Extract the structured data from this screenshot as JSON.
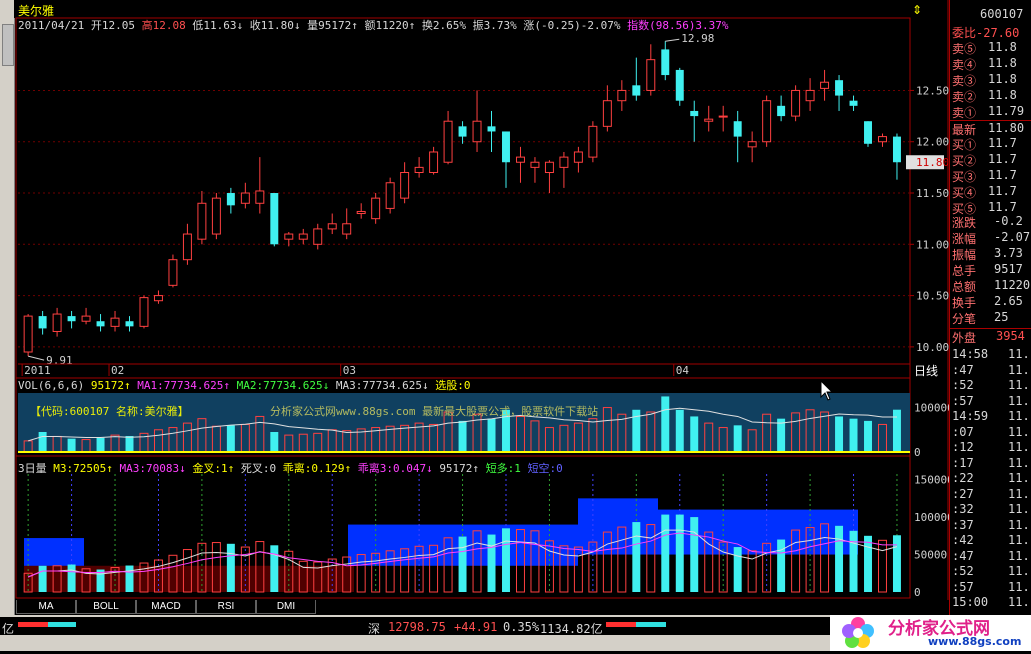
{
  "window": {
    "title": "美尔雅"
  },
  "infobar": {
    "date": "2011/04/21",
    "open": "开12.05",
    "high": "高12.08",
    "low": "低11.63↓",
    "close": "收11.80↓",
    "volume": "量95172↑",
    "amount": "额11220↑",
    "turnover": "换2.65%",
    "amplitude": "振3.73%",
    "change": "涨(-0.25)-2.07%",
    "index": "指数(98.56)3.37%"
  },
  "price_axis": [
    "12.50",
    "12.00",
    "11.50",
    "11.00",
    "10.50",
    "10.00"
  ],
  "price_tag": "11.80",
  "high_label": "12.98",
  "low_label": "9.91",
  "time_labels": [
    "2011",
    "02",
    "03",
    "04"
  ],
  "period": "日线",
  "vol_panel": {
    "legend": [
      "VOL(6,6,6)",
      "95172↑",
      "MA1:77734.625↑",
      "MA2:77734.625↓",
      "MA3:77734.625↓",
      "选股:0"
    ],
    "overlay_left": "【代码:600107 名称:美尔雅】",
    "overlay_mid": "分析家公式网www.88gs.com 最新最大股票公式，股票软件下载站",
    "axis": [
      "100000",
      "0"
    ]
  },
  "ind_panel": {
    "legend": [
      "3日量",
      "M3:72505↑",
      "MA3:70083↓",
      "金叉:1↑",
      "死叉:0",
      "乖离:0.129↑",
      "乖离3:0.047↓",
      "95172↑",
      "短多:1",
      "短空:0"
    ],
    "axis": [
      "150000",
      "100000",
      "50000",
      "0"
    ]
  },
  "tabs": [
    "MA",
    "BOLL",
    "MACD",
    "RSI",
    "DMI"
  ],
  "right_panel": {
    "code": "600107",
    "weibi": "委比-27.60",
    "sell": [
      {
        "label": "卖⑤",
        "price": "11.8"
      },
      {
        "label": "卖④",
        "price": "11.8"
      },
      {
        "label": "卖③",
        "price": "11.8"
      },
      {
        "label": "卖②",
        "price": "11.8"
      },
      {
        "label": "卖①",
        "price": "11.79"
      }
    ],
    "latest": {
      "label": "最新",
      "price": "11.80"
    },
    "buy": [
      {
        "label": "买①",
        "price": "11.7"
      },
      {
        "label": "买②",
        "price": "11.7"
      },
      {
        "label": "买③",
        "price": "11.7"
      },
      {
        "label": "买④",
        "price": "11.7"
      },
      {
        "label": "买⑤",
        "price": "11.7"
      }
    ],
    "stats": [
      {
        "label": "涨跌",
        "value": "-0.2"
      },
      {
        "label": "涨幅",
        "value": "-2.07"
      },
      {
        "label": "振幅",
        "value": "3.73"
      },
      {
        "label": "总手",
        "value": "9517"
      },
      {
        "label": "总额",
        "value": "11220"
      },
      {
        "label": "换手",
        "value": "2.65"
      },
      {
        "label": "分笔",
        "value": "25"
      }
    ],
    "waipan": {
      "label": "外盘",
      "value": "3954"
    },
    "ticks": [
      {
        "t": "14:58",
        "p": "11."
      },
      {
        "t": ":47",
        "p": "11."
      },
      {
        "t": ":52",
        "p": "11."
      },
      {
        "t": ":57",
        "p": "11."
      },
      {
        "t": "14:59",
        "p": "11."
      },
      {
        "t": ":07",
        "p": "11."
      },
      {
        "t": ":12",
        "p": "11."
      },
      {
        "t": ":17",
        "p": "11."
      },
      {
        "t": ":22",
        "p": "11."
      },
      {
        "t": ":27",
        "p": "11."
      },
      {
        "t": ":32",
        "p": "11."
      },
      {
        "t": ":37",
        "p": "11."
      },
      {
        "t": ":42",
        "p": "11."
      },
      {
        "t": ":47",
        "p": "11."
      },
      {
        "t": ":52",
        "p": "11."
      },
      {
        "t": ":57",
        "p": "11."
      },
      {
        "t": "15:00",
        "p": "11."
      }
    ]
  },
  "status": {
    "left_unit": "亿",
    "market": "深",
    "index": "12798.75",
    "change": "+44.91",
    "pct": "0.35%",
    "amount": "1134.82亿",
    "logo_text": "分析家公式网",
    "logo_url": "www.88gs.com"
  },
  "chart_data": {
    "type": "candlestick",
    "candles": [
      [
        9.95,
        10.3,
        9.91,
        10.32
      ],
      [
        10.3,
        10.18,
        10.12,
        10.35
      ],
      [
        10.15,
        10.32,
        10.1,
        10.38
      ],
      [
        10.3,
        10.25,
        10.18,
        10.35
      ],
      [
        10.25,
        10.3,
        10.22,
        10.38
      ],
      [
        10.25,
        10.2,
        10.15,
        10.32
      ],
      [
        10.2,
        10.28,
        10.15,
        10.35
      ],
      [
        10.25,
        10.2,
        10.15,
        10.3
      ],
      [
        10.2,
        10.48,
        10.18,
        10.5
      ],
      [
        10.45,
        10.5,
        10.42,
        10.55
      ],
      [
        10.6,
        10.85,
        10.58,
        10.9
      ],
      [
        10.85,
        11.1,
        10.8,
        11.2
      ],
      [
        11.05,
        11.4,
        11.0,
        11.52
      ],
      [
        11.1,
        11.45,
        11.05,
        11.5
      ],
      [
        11.5,
        11.38,
        11.3,
        11.55
      ],
      [
        11.4,
        11.5,
        11.35,
        11.6
      ],
      [
        11.4,
        11.52,
        11.3,
        11.85
      ],
      [
        11.5,
        11.0,
        10.98,
        11.5
      ],
      [
        11.05,
        11.1,
        10.98,
        11.12
      ],
      [
        11.05,
        11.1,
        11.0,
        11.15
      ],
      [
        11.0,
        11.15,
        10.95,
        11.2
      ],
      [
        11.15,
        11.2,
        11.1,
        11.3
      ],
      [
        11.1,
        11.2,
        11.05,
        11.35
      ],
      [
        11.3,
        11.32,
        11.25,
        11.4
      ],
      [
        11.25,
        11.45,
        11.2,
        11.5
      ],
      [
        11.35,
        11.6,
        11.3,
        11.65
      ],
      [
        11.45,
        11.7,
        11.4,
        11.8
      ],
      [
        11.7,
        11.75,
        11.65,
        11.85
      ],
      [
        11.7,
        11.9,
        11.68,
        11.95
      ],
      [
        11.8,
        12.2,
        11.78,
        12.3
      ],
      [
        12.15,
        12.05,
        11.98,
        12.2
      ],
      [
        12.0,
        12.2,
        11.9,
        12.5
      ],
      [
        12.15,
        12.1,
        11.9,
        12.3
      ],
      [
        12.1,
        11.8,
        11.55,
        12.1
      ],
      [
        11.8,
        11.85,
        11.6,
        11.95
      ],
      [
        11.75,
        11.8,
        11.6,
        11.85
      ],
      [
        11.7,
        11.8,
        11.5,
        11.82
      ],
      [
        11.75,
        11.85,
        11.55,
        11.9
      ],
      [
        11.8,
        11.9,
        11.7,
        11.95
      ],
      [
        11.85,
        12.15,
        11.8,
        12.2
      ],
      [
        12.15,
        12.4,
        12.1,
        12.55
      ],
      [
        12.4,
        12.5,
        12.3,
        12.6
      ],
      [
        12.55,
        12.45,
        12.4,
        12.82
      ],
      [
        12.5,
        12.8,
        12.45,
        12.95
      ],
      [
        12.9,
        12.65,
        12.6,
        12.98
      ],
      [
        12.7,
        12.4,
        12.35,
        12.72
      ],
      [
        12.3,
        12.25,
        12.0,
        12.4
      ],
      [
        12.2,
        12.22,
        12.1,
        12.35
      ],
      [
        12.25,
        12.25,
        12.1,
        12.35
      ],
      [
        12.2,
        12.05,
        11.8,
        12.3
      ],
      [
        11.95,
        12.0,
        11.8,
        12.1
      ],
      [
        12.0,
        12.4,
        11.95,
        12.45
      ],
      [
        12.35,
        12.25,
        12.2,
        12.45
      ],
      [
        12.25,
        12.5,
        12.2,
        12.55
      ],
      [
        12.4,
        12.5,
        12.3,
        12.62
      ],
      [
        12.52,
        12.58,
        12.4,
        12.7
      ],
      [
        12.6,
        12.45,
        12.3,
        12.65
      ],
      [
        12.4,
        12.35,
        12.3,
        12.45
      ],
      [
        12.2,
        11.98,
        11.95,
        12.2
      ],
      [
        12.0,
        12.05,
        11.95,
        12.08
      ],
      [
        12.05,
        11.8,
        11.63,
        12.08
      ]
    ],
    "volumes": [
      25000,
      45000,
      35000,
      30000,
      28000,
      32000,
      38000,
      36000,
      42000,
      50000,
      55000,
      65000,
      75000,
      58000,
      60000,
      62000,
      80000,
      45000,
      38000,
      40000,
      42000,
      50000,
      48000,
      52000,
      55000,
      58000,
      60000,
      65000,
      62000,
      90000,
      70000,
      85000,
      75000,
      95000,
      80000,
      70000,
      55000,
      60000,
      65000,
      75000,
      100000,
      85000,
      95000,
      90000,
      125000,
      95000,
      80000,
      65000,
      55000,
      60000,
      50000,
      85000,
      75000,
      88000,
      95000,
      90000,
      80000,
      75000,
      70000,
      62000,
      95172
    ],
    "price_range": [
      10.0,
      12.98
    ],
    "vol_range": [
      0,
      100000
    ],
    "ind_range": [
      0,
      150000
    ]
  }
}
